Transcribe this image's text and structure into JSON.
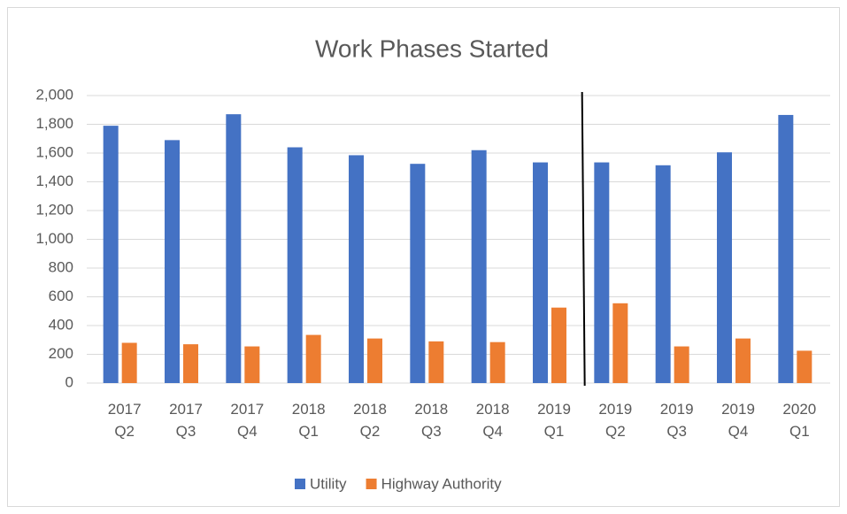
{
  "chart_data": {
    "type": "bar",
    "title": "Work Phases Started",
    "categories": [
      "2017 Q2",
      "2017 Q3",
      "2017 Q4",
      "2018 Q1",
      "2018 Q2",
      "2018 Q3",
      "2018 Q4",
      "2019 Q1",
      "2019 Q2",
      "2019 Q3",
      "2019 Q4",
      "2020 Q1"
    ],
    "series": [
      {
        "name": "Utility",
        "color": "#4472c4",
        "values": [
          1790,
          1690,
          1870,
          1640,
          1585,
          1525,
          1620,
          1535,
          1535,
          1515,
          1605,
          1865
        ]
      },
      {
        "name": "Highway Authority",
        "color": "#ed7d31",
        "values": [
          280,
          270,
          255,
          335,
          310,
          290,
          285,
          525,
          555,
          255,
          310,
          225
        ]
      }
    ],
    "ylim": [
      0,
      2000
    ],
    "yticks": [
      0,
      200,
      400,
      600,
      800,
      {
        "value": 1000,
        "label": "1,000"
      },
      {
        "value": 1200,
        "label": "1,200"
      },
      {
        "value": 1400,
        "label": "1,400"
      },
      {
        "value": 1600,
        "label": "1,600"
      },
      {
        "value": 1800,
        "label": "1,800"
      },
      {
        "value": 2000,
        "label": "2,000"
      }
    ],
    "grid": true,
    "legend": "bottom"
  }
}
